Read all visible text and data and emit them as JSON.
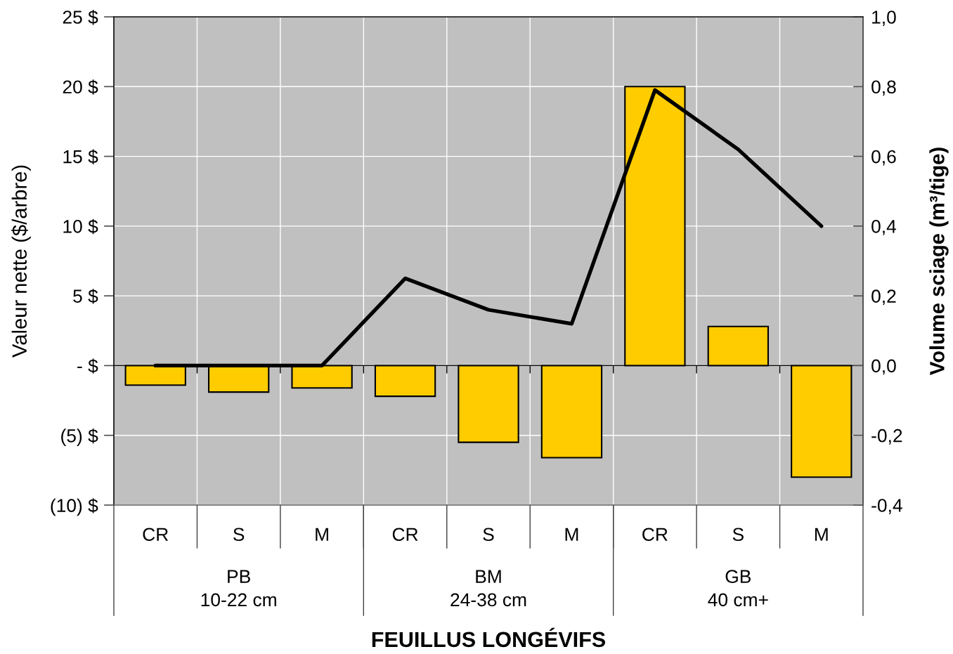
{
  "chart_data": {
    "type": "bar",
    "xlabel": "FEUILLUS LONGÉVIFS",
    "ylabel": "Valeur nette ($/arbre)",
    "y2label": "Volume sciage (m³/tige)",
    "categories": [
      "CR",
      "S",
      "M",
      "CR",
      "S",
      "M",
      "CR",
      "S",
      "M"
    ],
    "annotations": [
      "PB\n10-22 cm",
      "BM\n24-38 cm",
      "GB\n40 cm+"
    ],
    "series": [
      {
        "color": "#ffcc00",
        "values": [
          -1.4,
          -1.9,
          -1.6,
          -2.2,
          -5.5,
          -6.6,
          20.0,
          2.8,
          -8.0
        ]
      },
      {
        "type": "line",
        "axis": "y2",
        "color": "#000000",
        "values": [
          0,
          0,
          0,
          0.25,
          0.16,
          0.12,
          0.79,
          0.62,
          0.4
        ]
      }
    ],
    "ylim": [
      -10,
      25
    ],
    "yticks": [
      {
        "value": -10,
        "label": "(10) $"
      },
      {
        "value": -5,
        "label": "(5) $"
      },
      {
        "value": 0,
        "label": "- $"
      },
      {
        "value": 5,
        "label": "5 $"
      },
      {
        "value": 10,
        "label": "10 $"
      },
      {
        "value": 15,
        "label": "15 $"
      },
      {
        "value": 20,
        "label": "20 $"
      },
      {
        "value": 25,
        "label": "25 $"
      }
    ],
    "y2lim": [
      -0.4,
      1.0
    ],
    "y2ticks": [
      {
        "value": -0.4,
        "label": "-0,4"
      },
      {
        "value": -0.2,
        "label": "-0,2"
      },
      {
        "value": 0.0,
        "label": "0,0"
      },
      {
        "value": 0.2,
        "label": "0,2"
      },
      {
        "value": 0.4,
        "label": "0,4"
      },
      {
        "value": 0.6,
        "label": "0,6"
      },
      {
        "value": 0.8,
        "label": "0,8"
      },
      {
        "value": 1.0,
        "label": "1,0"
      }
    ],
    "grid": true
  }
}
